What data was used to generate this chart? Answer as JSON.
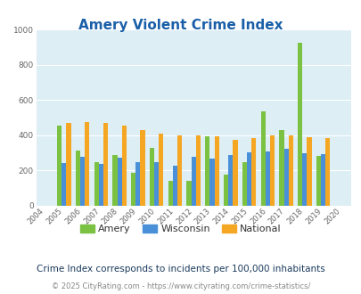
{
  "title": "Amery Violent Crime Index",
  "years": [
    2004,
    2005,
    2006,
    2007,
    2008,
    2009,
    2010,
    2011,
    2012,
    2013,
    2014,
    2015,
    2016,
    2017,
    2018,
    2019,
    2020
  ],
  "amery": [
    0,
    455,
    315,
    248,
    290,
    188,
    330,
    140,
    140,
    395,
    178,
    245,
    535,
    430,
    925,
    285,
    0
  ],
  "wisconsin": [
    0,
    243,
    280,
    235,
    275,
    250,
    248,
    225,
    280,
    268,
    288,
    302,
    308,
    323,
    298,
    295,
    0
  ],
  "national": [
    0,
    470,
    475,
    468,
    457,
    430,
    407,
    397,
    397,
    394,
    375,
    383,
    397,
    400,
    388,
    385,
    0
  ],
  "amery_color": "#7bc142",
  "wisconsin_color": "#4a90d9",
  "national_color": "#f5a623",
  "bg_color": "#ddeef5",
  "title_color": "#1a5fa8",
  "subtitle_color": "#1a3a5c",
  "footer_color": "#888888",
  "footer_link_color": "#4a90d9",
  "ylim": [
    0,
    1000
  ],
  "yticks": [
    0,
    200,
    400,
    600,
    800,
    1000
  ],
  "subtitle": "Crime Index corresponds to incidents per 100,000 inhabitants",
  "footer": "© 2025 CityRating.com - https://www.cityrating.com/crime-statistics/",
  "legend_labels": [
    "Amery",
    "Wisconsin",
    "National"
  ],
  "bar_width": 0.25
}
